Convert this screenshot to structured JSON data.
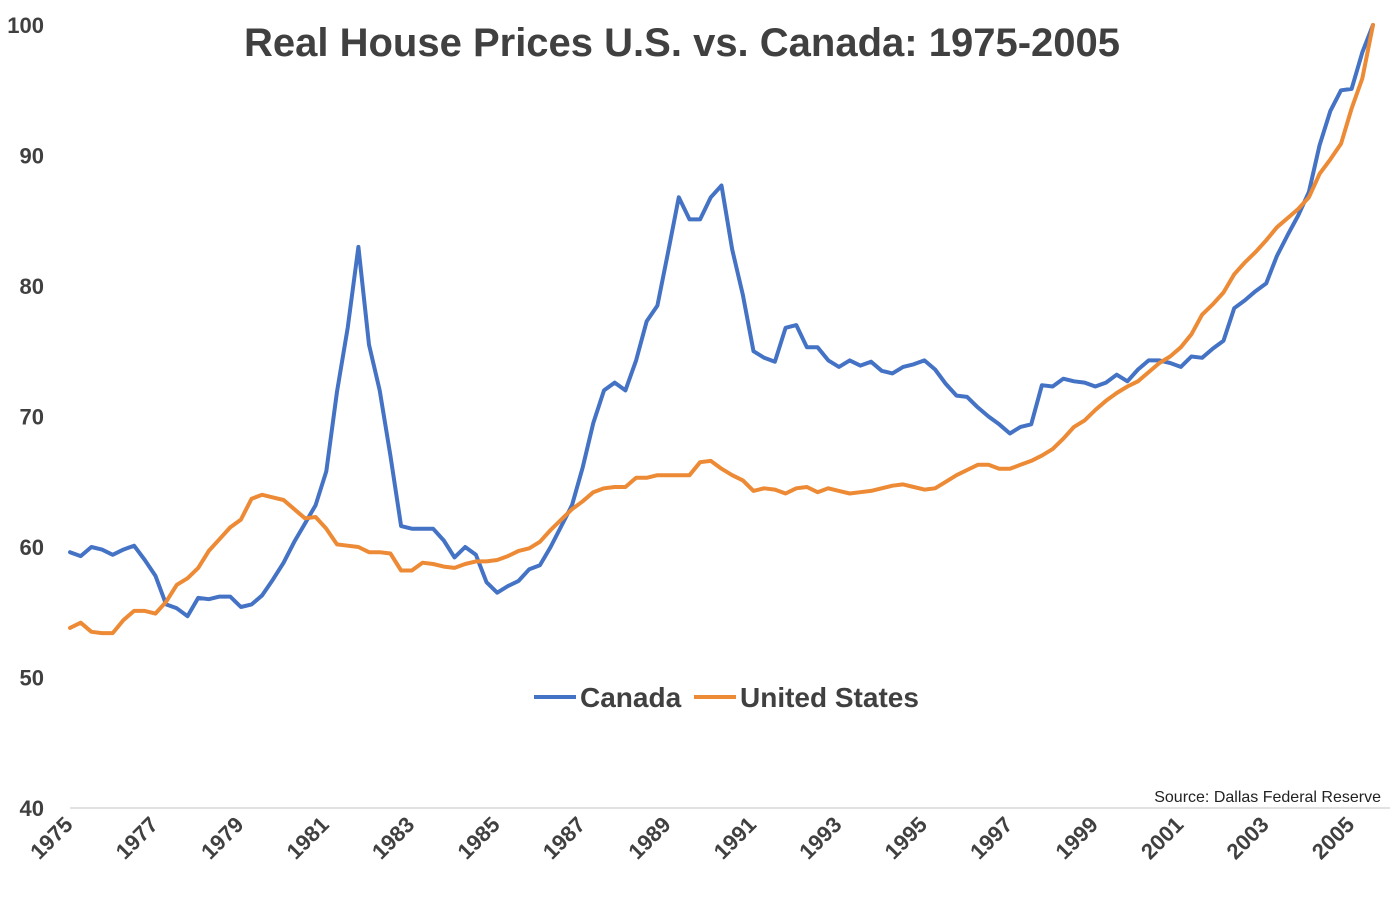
{
  "chart_data": {
    "type": "line",
    "title": "Real House Prices U.S. vs. Canada: 1975-2005",
    "source": "Source: Dallas Federal Reserve",
    "xlabel": "",
    "ylabel": "",
    "xlim": [
      1975,
      2005.5
    ],
    "ylim": [
      40,
      100
    ],
    "y_ticks": [
      "40",
      "50",
      "60",
      "70",
      "80",
      "90",
      "100"
    ],
    "x_ticks": [
      "1975",
      "1977",
      "1979",
      "1981",
      "1983",
      "1985",
      "1987",
      "1989",
      "1991",
      "1993",
      "1995",
      "1997",
      "1999",
      "2001",
      "2003",
      "2005"
    ],
    "grid": false,
    "legend_position": "center",
    "colors": {
      "Canada": "#4472c4",
      "United States": "#ed8a35",
      "axis": "#d9d9d9"
    },
    "x": [
      1975,
      1975.25,
      1975.5,
      1975.75,
      1976,
      1976.25,
      1976.5,
      1976.75,
      1977,
      1977.25,
      1977.5,
      1977.75,
      1978,
      1978.25,
      1978.5,
      1978.75,
      1979,
      1979.25,
      1979.5,
      1979.75,
      1980,
      1980.25,
      1980.5,
      1980.75,
      1981,
      1981.25,
      1981.5,
      1981.75,
      1982,
      1982.25,
      1982.5,
      1982.75,
      1983,
      1983.25,
      1983.5,
      1983.75,
      1984,
      1984.25,
      1984.5,
      1984.75,
      1985,
      1985.25,
      1985.5,
      1985.75,
      1986,
      1986.25,
      1986.5,
      1986.75,
      1987,
      1987.25,
      1987.5,
      1987.75,
      1988,
      1988.25,
      1988.5,
      1988.75,
      1989,
      1989.25,
      1989.5,
      1989.75,
      1990,
      1990.25,
      1990.5,
      1990.75,
      1991,
      1991.25,
      1991.5,
      1991.75,
      1992,
      1992.25,
      1992.5,
      1992.75,
      1993,
      1993.25,
      1993.5,
      1993.75,
      1994,
      1994.25,
      1994.5,
      1994.75,
      1995,
      1995.25,
      1995.5,
      1995.75,
      1996,
      1996.25,
      1996.5,
      1996.75,
      1997,
      1997.25,
      1997.5,
      1997.75,
      1998,
      1998.25,
      1998.5,
      1998.75,
      1999,
      1999.25,
      1999.5,
      1999.75,
      2000,
      2000.25,
      2000.5,
      2000.75,
      2001,
      2001.25,
      2001.5,
      2001.75,
      2002,
      2002.25,
      2002.5,
      2002.75,
      2003,
      2003.25,
      2003.5,
      2003.75,
      2004,
      2004.25,
      2004.5,
      2004.75,
      2005,
      2005.25,
      2005.5
    ],
    "series": [
      {
        "name": "Canada",
        "color": "#4472c4",
        "values": [
          59.6,
          59.3,
          60.0,
          59.8,
          59.4,
          59.8,
          60.1,
          59.0,
          57.8,
          55.6,
          55.3,
          54.7,
          56.1,
          56.0,
          56.2,
          56.2,
          55.4,
          55.6,
          56.3,
          57.5,
          58.8,
          60.4,
          61.8,
          63.2,
          65.8,
          71.9,
          76.8,
          83.0,
          75.5,
          72.0,
          67.0,
          61.6,
          61.4,
          61.4,
          61.4,
          60.5,
          59.2,
          60.0,
          59.4,
          57.3,
          56.5,
          57.0,
          57.4,
          58.3,
          58.6,
          60.0,
          61.6,
          63.2,
          66.1,
          69.5,
          72.0,
          72.6,
          72.0,
          74.3,
          77.3,
          78.5,
          82.6,
          86.8,
          85.1,
          85.1,
          86.8,
          87.7,
          82.8,
          79.3,
          75.0,
          74.5,
          74.2,
          76.8,
          77.0,
          75.3,
          75.3,
          74.3,
          73.8,
          74.3,
          73.9,
          74.2,
          73.5,
          73.3,
          73.8,
          74.0,
          74.3,
          73.6,
          72.5,
          71.6,
          71.5,
          70.7,
          70.0,
          69.4,
          68.7,
          69.2,
          69.4,
          72.4,
          72.3,
          72.9,
          72.7,
          72.6,
          72.3,
          72.6,
          73.2,
          72.7,
          73.6,
          74.3,
          74.3,
          74.1,
          73.8,
          74.6,
          74.5,
          75.2,
          75.8,
          78.3,
          78.9,
          79.6,
          80.2,
          82.3,
          83.9,
          85.4,
          87.2,
          90.8,
          93.4,
          95.0,
          95.1,
          97.9,
          100.0
        ]
      },
      {
        "name": "United States",
        "color": "#ed8a35",
        "values": [
          53.8,
          54.2,
          53.5,
          53.4,
          53.4,
          54.4,
          55.1,
          55.1,
          54.9,
          55.8,
          57.1,
          57.6,
          58.4,
          59.7,
          60.6,
          61.5,
          62.1,
          63.7,
          64.0,
          63.8,
          63.6,
          62.9,
          62.2,
          62.3,
          61.4,
          60.2,
          60.1,
          60.0,
          59.6,
          59.6,
          59.5,
          58.2,
          58.2,
          58.8,
          58.7,
          58.5,
          58.4,
          58.7,
          58.9,
          58.9,
          59.0,
          59.3,
          59.7,
          59.9,
          60.4,
          61.3,
          62.1,
          62.9,
          63.5,
          64.2,
          64.5,
          64.6,
          64.6,
          65.3,
          65.3,
          65.5,
          65.5,
          65.5,
          65.5,
          66.5,
          66.6,
          66.0,
          65.5,
          65.1,
          64.3,
          64.5,
          64.4,
          64.1,
          64.5,
          64.6,
          64.2,
          64.5,
          64.3,
          64.1,
          64.2,
          64.3,
          64.5,
          64.7,
          64.8,
          64.6,
          64.4,
          64.5,
          65.0,
          65.5,
          65.9,
          66.3,
          66.3,
          66.0,
          66.0,
          66.3,
          66.6,
          67.0,
          67.5,
          68.3,
          69.2,
          69.7,
          70.5,
          71.2,
          71.8,
          72.3,
          72.7,
          73.4,
          74.1,
          74.6,
          75.3,
          76.3,
          77.8,
          78.6,
          79.5,
          80.9,
          81.8,
          82.6,
          83.5,
          84.5,
          85.2,
          85.9,
          86.8,
          88.6,
          89.7,
          90.9,
          93.6,
          95.9,
          100.0
        ]
      }
    ]
  }
}
